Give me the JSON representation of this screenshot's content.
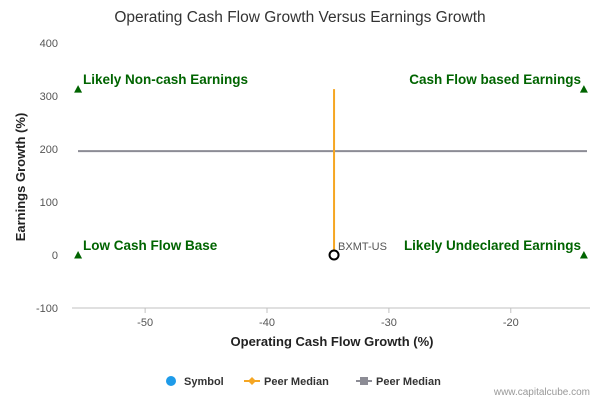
{
  "chart_data": {
    "type": "scatter",
    "title": "Operating Cash Flow Growth Versus Earnings Growth",
    "xlabel": "Operating Cash Flow Growth (%)",
    "ylabel": "Earnings Growth (%)",
    "xlim": [
      -56,
      -13.5
    ],
    "ylim": [
      -100,
      400
    ],
    "x_ticks": [
      -50,
      -40,
      -30,
      -20
    ],
    "y_ticks": [
      -100,
      0,
      100,
      200,
      300,
      400
    ],
    "grid": false,
    "quadrant_labels": [
      {
        "name": "top-left",
        "text": "Likely Non-cash Earnings"
      },
      {
        "name": "top-right",
        "text": "Cash Flow based Earnings"
      },
      {
        "name": "bottom-left",
        "text": "Low Cash Flow Base"
      },
      {
        "name": "bottom-right",
        "text": "Likely Undeclared Earnings"
      }
    ],
    "quadrant_markers": [
      {
        "x": -55.5,
        "y": 313
      },
      {
        "x": -14,
        "y": 313
      },
      {
        "x": -55.5,
        "y": 0
      },
      {
        "x": -14,
        "y": 0
      }
    ],
    "points": [
      {
        "label": "BXMT-US",
        "x": -34.5,
        "y": 0
      }
    ],
    "peer_median_x": {
      "x": -34.5,
      "y_range": [
        0,
        313
      ],
      "color": "#f5a623"
    },
    "peer_median_y": {
      "y": 196,
      "color": "#8c8c95"
    },
    "legend": [
      {
        "label": "Symbol",
        "color": "#1e9be9",
        "marker": "circle"
      },
      {
        "label": "Peer Median",
        "color": "#f5a623",
        "marker": "diamond-line"
      },
      {
        "label": "Peer Median",
        "color": "#8c8c95",
        "marker": "square-line"
      }
    ],
    "legend_position": "bottom-center",
    "marker_color": "#006400",
    "watermark": "www.capitalcube.com"
  }
}
